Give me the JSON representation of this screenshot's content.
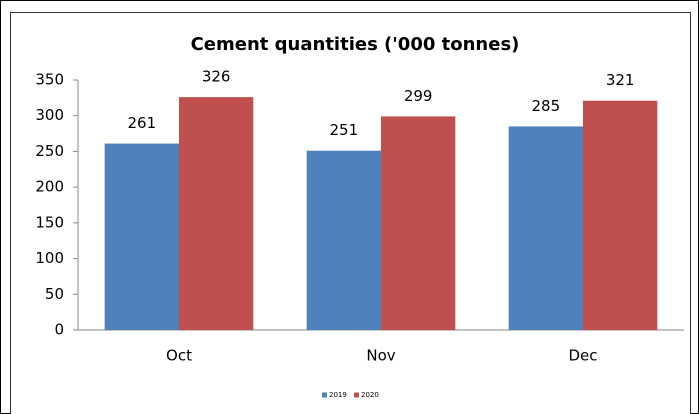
{
  "chart_data": {
    "type": "bar",
    "title": "Cement quantities ('000 tonnes)",
    "categories": [
      "Oct",
      "Nov",
      "Dec"
    ],
    "series": [
      {
        "name": "2019",
        "color": "#4f81bd",
        "values": [
          261,
          251,
          285
        ]
      },
      {
        "name": "2020",
        "color": "#c0504d",
        "values": [
          326,
          299,
          321
        ]
      }
    ],
    "ylim": [
      0,
      350
    ],
    "yticks": [
      0,
      50,
      100,
      150,
      200,
      250,
      300,
      350
    ],
    "legend": "bottom",
    "grid": false
  }
}
